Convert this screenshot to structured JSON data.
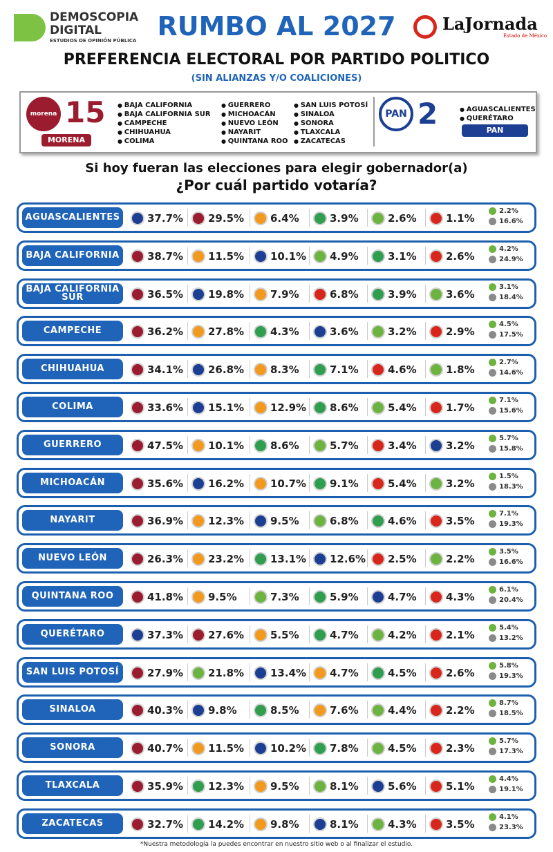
{
  "header": {
    "brand": [
      "DEMOSCOPIA",
      "DIGITAL"
    ],
    "brand_tagline": "ESTUDIOS DE OPINIÓN PÚBLICA",
    "title": "RUMBO AL 2027",
    "partner": "LaJornada",
    "partner_tagline": "Estado de México",
    "subtitle": "PREFERENCIA ELECTORAL POR PARTIDO POLITICO",
    "note": "(SIN ALIANZAS Y/O COALICIONES)"
  },
  "summary": [
    {
      "logo": "morena",
      "count": "15",
      "label": "MORENA",
      "color": "#9b1c2e",
      "states": [
        "BAJA CALIFORNIA",
        "BAJA CALIFORNIA SUR",
        "CAMPECHE",
        "CHIHUAHUA",
        "COLIMA",
        "GUERRERO",
        "MICHOACÁN",
        "NUEVO LEÓN",
        "NAYARIT",
        "QUINTANA ROO",
        "SAN LUIS POTOSÍ",
        "SINALOA",
        "SONORA",
        "TLAXCALA",
        "ZACATECAS"
      ]
    },
    {
      "logo": "PAN",
      "count": "2",
      "label": "PAN",
      "color": "#1c3f94",
      "states": [
        "AGUASCALIENTES",
        "QUERÉTARO"
      ]
    }
  ],
  "question": [
    "Si hoy fueran las elecciones para elegir gobernador(a)",
    "¿Por cuál partido votaría?"
  ],
  "extra_colors": [
    "#6db33f",
    "#8a8a8a"
  ],
  "rows": [
    {
      "state": "AGUASCALIENTES",
      "cells": [
        [
          "#1c3f94",
          "37.7%"
        ],
        [
          "#9b1c2e",
          "29.5%"
        ],
        [
          "#f39a1e",
          "6.4%"
        ],
        [
          "#2f9e4f",
          "3.9%"
        ],
        [
          "#6db33f",
          "2.6%"
        ],
        [
          "#d9261c",
          "1.1%"
        ]
      ],
      "extra": [
        "2.2%",
        "16.6%"
      ]
    },
    {
      "state": "BAJA CALIFORNIA",
      "cells": [
        [
          "#9b1c2e",
          "38.7%"
        ],
        [
          "#f39a1e",
          "11.5%"
        ],
        [
          "#1c3f94",
          "10.1%"
        ],
        [
          "#6db33f",
          "4.9%"
        ],
        [
          "#2f9e4f",
          "3.1%"
        ],
        [
          "#d9261c",
          "2.6%"
        ]
      ],
      "extra": [
        "4.2%",
        "24.9%"
      ]
    },
    {
      "state": "BAJA CALIFORNIA SUR",
      "cells": [
        [
          "#9b1c2e",
          "36.5%"
        ],
        [
          "#1c3f94",
          "19.8%"
        ],
        [
          "#f39a1e",
          "7.9%"
        ],
        [
          "#d9261c",
          "6.8%"
        ],
        [
          "#2f9e4f",
          "3.9%"
        ],
        [
          "#6db33f",
          "3.6%"
        ]
      ],
      "extra": [
        "3.1%",
        "18.4%"
      ]
    },
    {
      "state": "CAMPECHE",
      "cells": [
        [
          "#9b1c2e",
          "36.2%"
        ],
        [
          "#f39a1e",
          "27.8%"
        ],
        [
          "#2f9e4f",
          "4.3%"
        ],
        [
          "#1c3f94",
          "3.6%"
        ],
        [
          "#6db33f",
          "3.2%"
        ],
        [
          "#d9261c",
          "2.9%"
        ]
      ],
      "extra": [
        "4.5%",
        "17.5%"
      ]
    },
    {
      "state": "CHIHUAHUA",
      "cells": [
        [
          "#9b1c2e",
          "34.1%"
        ],
        [
          "#1c3f94",
          "26.8%"
        ],
        [
          "#f39a1e",
          "8.3%"
        ],
        [
          "#2f9e4f",
          "7.1%"
        ],
        [
          "#d9261c",
          "4.6%"
        ],
        [
          "#6db33f",
          "1.8%"
        ]
      ],
      "extra": [
        "2.7%",
        "14.6%"
      ]
    },
    {
      "state": "COLIMA",
      "cells": [
        [
          "#9b1c2e",
          "33.6%"
        ],
        [
          "#1c3f94",
          "15.1%"
        ],
        [
          "#f39a1e",
          "12.9%"
        ],
        [
          "#2f9e4f",
          "8.6%"
        ],
        [
          "#6db33f",
          "5.4%"
        ],
        [
          "#d9261c",
          "1.7%"
        ]
      ],
      "extra": [
        "7.1%",
        "15.6%"
      ]
    },
    {
      "state": "GUERRERO",
      "cells": [
        [
          "#9b1c2e",
          "47.5%"
        ],
        [
          "#f39a1e",
          "10.1%"
        ],
        [
          "#2f9e4f",
          "8.6%"
        ],
        [
          "#6db33f",
          "5.7%"
        ],
        [
          "#d9261c",
          "3.4%"
        ],
        [
          "#1c3f94",
          "3.2%"
        ]
      ],
      "extra": [
        "5.7%",
        "15.8%"
      ]
    },
    {
      "state": "MICHOACÁN",
      "cells": [
        [
          "#9b1c2e",
          "35.6%"
        ],
        [
          "#1c3f94",
          "16.2%"
        ],
        [
          "#f39a1e",
          "10.7%"
        ],
        [
          "#2f9e4f",
          "9.1%"
        ],
        [
          "#d9261c",
          "5.4%"
        ],
        [
          "#6db33f",
          "3.2%"
        ]
      ],
      "extra": [
        "1.5%",
        "18.3%"
      ]
    },
    {
      "state": "NAYARIT",
      "cells": [
        [
          "#9b1c2e",
          "36.9%"
        ],
        [
          "#f39a1e",
          "12.3%"
        ],
        [
          "#1c3f94",
          "9.5%"
        ],
        [
          "#6db33f",
          "6.8%"
        ],
        [
          "#2f9e4f",
          "4.6%"
        ],
        [
          "#d9261c",
          "3.5%"
        ]
      ],
      "extra": [
        "7.1%",
        "19.3%"
      ]
    },
    {
      "state": "NUEVO LEÓN",
      "cells": [
        [
          "#9b1c2e",
          "26.3%"
        ],
        [
          "#f39a1e",
          "23.2%"
        ],
        [
          "#2f9e4f",
          "13.1%"
        ],
        [
          "#1c3f94",
          "12.6%"
        ],
        [
          "#d9261c",
          "2.5%"
        ],
        [
          "#6db33f",
          "2.2%"
        ]
      ],
      "extra": [
        "3.5%",
        "16.6%"
      ]
    },
    {
      "state": "QUINTANA ROO",
      "cells": [
        [
          "#9b1c2e",
          "41.8%"
        ],
        [
          "#f39a1e",
          "9.5%"
        ],
        [
          "#6db33f",
          "7.3%"
        ],
        [
          "#2f9e4f",
          "5.9%"
        ],
        [
          "#1c3f94",
          "4.7%"
        ],
        [
          "#d9261c",
          "4.3%"
        ]
      ],
      "extra": [
        "6.1%",
        "20.4%"
      ]
    },
    {
      "state": "QUERÉTARO",
      "cells": [
        [
          "#1c3f94",
          "37.3%"
        ],
        [
          "#9b1c2e",
          "27.6%"
        ],
        [
          "#f39a1e",
          "5.5%"
        ],
        [
          "#2f9e4f",
          "4.7%"
        ],
        [
          "#6db33f",
          "4.2%"
        ],
        [
          "#d9261c",
          "2.1%"
        ]
      ],
      "extra": [
        "5.4%",
        "13.2%"
      ]
    },
    {
      "state": "SAN LUIS POTOSÍ",
      "cells": [
        [
          "#9b1c2e",
          "27.9%"
        ],
        [
          "#6db33f",
          "21.8%"
        ],
        [
          "#1c3f94",
          "13.4%"
        ],
        [
          "#f39a1e",
          "4.7%"
        ],
        [
          "#2f9e4f",
          "4.5%"
        ],
        [
          "#d9261c",
          "2.6%"
        ]
      ],
      "extra": [
        "5.8%",
        "19.3%"
      ]
    },
    {
      "state": "SINALOA",
      "cells": [
        [
          "#9b1c2e",
          "40.3%"
        ],
        [
          "#1c3f94",
          "9.8%"
        ],
        [
          "#2f9e4f",
          "8.5%"
        ],
        [
          "#f39a1e",
          "7.6%"
        ],
        [
          "#6db33f",
          "4.4%"
        ],
        [
          "#d9261c",
          "2.2%"
        ]
      ],
      "extra": [
        "8.7%",
        "18.5%"
      ]
    },
    {
      "state": "SONORA",
      "cells": [
        [
          "#9b1c2e",
          "40.7%"
        ],
        [
          "#f39a1e",
          "11.5%"
        ],
        [
          "#1c3f94",
          "10.2%"
        ],
        [
          "#2f9e4f",
          "7.8%"
        ],
        [
          "#6db33f",
          "4.5%"
        ],
        [
          "#d9261c",
          "2.3%"
        ]
      ],
      "extra": [
        "5.7%",
        "17.3%"
      ]
    },
    {
      "state": "TLAXCALA",
      "cells": [
        [
          "#9b1c2e",
          "35.9%"
        ],
        [
          "#2f9e4f",
          "12.3%"
        ],
        [
          "#f39a1e",
          "9.5%"
        ],
        [
          "#6db33f",
          "8.1%"
        ],
        [
          "#1c3f94",
          "5.6%"
        ],
        [
          "#d9261c",
          "5.1%"
        ]
      ],
      "extra": [
        "4.4%",
        "19.1%"
      ]
    },
    {
      "state": "ZACATECAS",
      "cells": [
        [
          "#9b1c2e",
          "32.7%"
        ],
        [
          "#2f9e4f",
          "14.2%"
        ],
        [
          "#f39a1e",
          "9.8%"
        ],
        [
          "#1c3f94",
          "8.1%"
        ],
        [
          "#6db33f",
          "4.3%"
        ],
        [
          "#d9261c",
          "3.5%"
        ]
      ],
      "extra": [
        "4.1%",
        "23.3%"
      ]
    }
  ],
  "footnote": "*Nuestra metodología la puedes encontrar en nuestro sitio web o al finalizar el estudio."
}
